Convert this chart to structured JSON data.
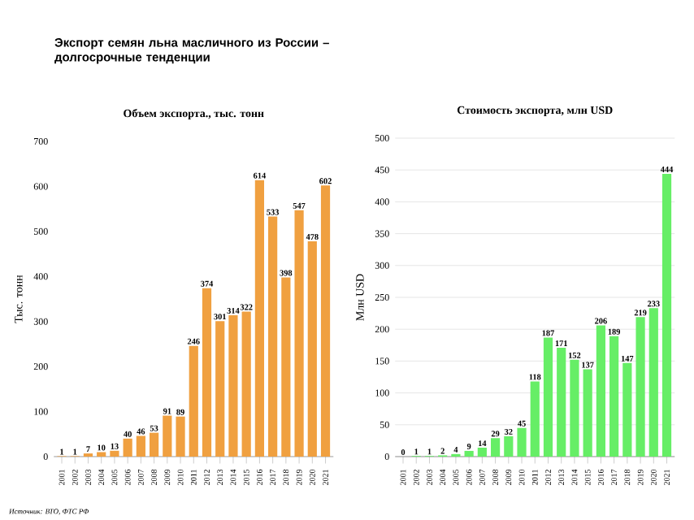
{
  "chart_data": [
    {
      "type": "bar",
      "title": "Экспорт семян льна масличного из России – долгосрочные тенденции",
      "subtitle": "Объем экспорта., тыс. тонн",
      "ylabel": "Тыс. тонн",
      "categories": [
        "2001",
        "2002",
        "2003",
        "2004",
        "2005",
        "2006",
        "2007",
        "2008",
        "2009",
        "2010",
        "2011",
        "2012",
        "2013",
        "2014",
        "2015",
        "2016",
        "2017",
        "2018",
        "2019",
        "2020",
        "2021"
      ],
      "values": [
        1,
        1,
        7,
        10,
        13,
        40,
        46,
        53,
        91,
        89,
        246,
        374,
        301,
        314,
        322,
        614,
        533,
        398,
        547,
        478,
        602
      ],
      "color": "#f0a040",
      "ylim": [
        0,
        700
      ],
      "yticks": [
        0,
        100,
        200,
        300,
        400,
        500,
        600,
        700
      ],
      "grid": false,
      "data_labels": true,
      "annotations": [
        "Источник: ВТО, ФТС РФ"
      ]
    },
    {
      "type": "bar",
      "title": "Стоимость экспорта, млн USD",
      "ylabel": "Млн USD",
      "categories": [
        "2001",
        "2002",
        "2003",
        "2004",
        "2005",
        "2006",
        "2007",
        "2008",
        "2009",
        "2010",
        "2011",
        "2012",
        "2013",
        "2014",
        "2015",
        "2016",
        "2017",
        "2018",
        "2019",
        "2020",
        "2021"
      ],
      "values": [
        0,
        1,
        1,
        2,
        4,
        9,
        14,
        29,
        32,
        45,
        118,
        187,
        171,
        152,
        137,
        206,
        189,
        147,
        219,
        233,
        444
      ],
      "color": "#66ee66",
      "ylim": [
        0,
        500
      ],
      "yticks": [
        0,
        50,
        100,
        150,
        200,
        250,
        300,
        350,
        400,
        450,
        500
      ],
      "grid": "y",
      "data_labels": true
    }
  ]
}
